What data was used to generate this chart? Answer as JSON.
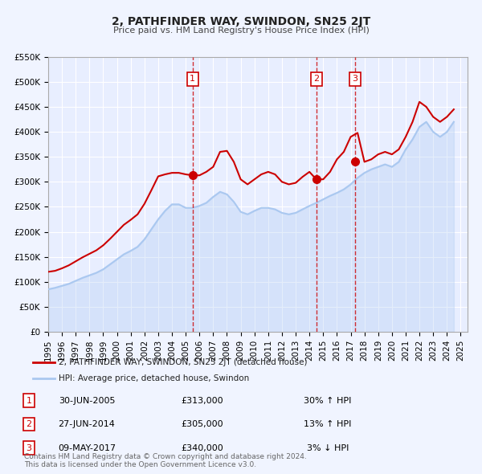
{
  "title": "2, PATHFINDER WAY, SWINDON, SN25 2JT",
  "subtitle": "Price paid vs. HM Land Registry's House Price Index (HPI)",
  "legend_label_red": "2, PATHFINDER WAY, SWINDON, SN25 2JT (detached house)",
  "legend_label_blue": "HPI: Average price, detached house, Swindon",
  "ylabel": "",
  "xlabel": "",
  "ylim": [
    0,
    550000
  ],
  "yticks": [
    0,
    50000,
    100000,
    150000,
    200000,
    250000,
    300000,
    350000,
    400000,
    450000,
    500000,
    550000
  ],
  "ytick_labels": [
    "£0",
    "£50K",
    "£100K",
    "£150K",
    "£200K",
    "£250K",
    "£300K",
    "£350K",
    "£400K",
    "£450K",
    "£500K",
    "£550K"
  ],
  "xlim_start": 1995.0,
  "xlim_end": 2025.5,
  "background_color": "#f0f4ff",
  "plot_bg_color": "#e8eeff",
  "grid_color": "#ffffff",
  "red_color": "#cc0000",
  "blue_color": "#aac8f0",
  "sale_marker_color": "#cc0000",
  "dashed_line_color": "#cc0000",
  "transaction_box_color": "#cc0000",
  "transactions": [
    {
      "num": 1,
      "date": "30-JUN-2005",
      "price": 313000,
      "hpi_pct": "30%",
      "hpi_dir": "↑",
      "year": 2005.5
    },
    {
      "num": 2,
      "date": "27-JUN-2014",
      "price": 305000,
      "hpi_pct": "13%",
      "hpi_dir": "↑",
      "year": 2014.5
    },
    {
      "num": 3,
      "date": "09-MAY-2017",
      "price": 340000,
      "hpi_pct": "3%",
      "hpi_dir": "↓",
      "year": 2017.33
    }
  ],
  "footnote": "Contains HM Land Registry data © Crown copyright and database right 2024.\nThis data is licensed under the Open Government Licence v3.0.",
  "hpi_data": {
    "years": [
      1995,
      1995.5,
      1996,
      1996.5,
      1997,
      1997.5,
      1998,
      1998.5,
      1999,
      1999.5,
      2000,
      2000.5,
      2001,
      2001.5,
      2002,
      2002.5,
      2003,
      2003.5,
      2004,
      2004.5,
      2005,
      2005.5,
      2006,
      2006.5,
      2007,
      2007.5,
      2008,
      2008.5,
      2009,
      2009.5,
      2010,
      2010.5,
      2011,
      2011.5,
      2012,
      2012.5,
      2013,
      2013.5,
      2014,
      2014.5,
      2015,
      2015.5,
      2016,
      2016.5,
      2017,
      2017.5,
      2018,
      2018.5,
      2019,
      2019.5,
      2020,
      2020.5,
      2021,
      2021.5,
      2022,
      2022.5,
      2023,
      2023.5,
      2024,
      2024.5
    ],
    "values": [
      85000,
      88000,
      92000,
      96000,
      102000,
      108000,
      113000,
      118000,
      125000,
      135000,
      145000,
      155000,
      162000,
      170000,
      185000,
      205000,
      225000,
      242000,
      255000,
      255000,
      248000,
      248000,
      252000,
      258000,
      270000,
      280000,
      275000,
      260000,
      240000,
      235000,
      242000,
      248000,
      248000,
      245000,
      238000,
      235000,
      238000,
      245000,
      252000,
      258000,
      265000,
      272000,
      278000,
      285000,
      295000,
      308000,
      318000,
      325000,
      330000,
      335000,
      330000,
      340000,
      365000,
      385000,
      410000,
      420000,
      400000,
      390000,
      400000,
      420000
    ]
  },
  "red_data": {
    "years": [
      1995,
      1995.5,
      1996,
      1996.5,
      1997,
      1997.5,
      1998,
      1998.5,
      1999,
      1999.5,
      2000,
      2000.5,
      2001,
      2001.5,
      2002,
      2002.5,
      2003,
      2003.5,
      2004,
      2004.5,
      2005,
      2005.5,
      2006,
      2006.5,
      2007,
      2007.5,
      2008,
      2008.5,
      2009,
      2009.5,
      2010,
      2010.5,
      2011,
      2011.5,
      2012,
      2012.5,
      2013,
      2013.5,
      2014,
      2014.5,
      2015,
      2015.5,
      2016,
      2016.5,
      2017,
      2017.5,
      2018,
      2018.5,
      2019,
      2019.5,
      2020,
      2020.5,
      2021,
      2021.5,
      2022,
      2022.5,
      2023,
      2023.5,
      2024,
      2024.5
    ],
    "values": [
      120000,
      122000,
      127000,
      133000,
      141000,
      149000,
      156000,
      163000,
      173000,
      186000,
      200000,
      214000,
      224000,
      235000,
      256000,
      283000,
      311000,
      315000,
      318000,
      318000,
      315000,
      313000,
      313000,
      320000,
      330000,
      360000,
      362000,
      340000,
      305000,
      295000,
      305000,
      315000,
      320000,
      315000,
      300000,
      295000,
      298000,
      310000,
      320000,
      305000,
      305000,
      320000,
      345000,
      360000,
      390000,
      398000,
      340000,
      345000,
      355000,
      360000,
      355000,
      365000,
      390000,
      420000,
      460000,
      450000,
      430000,
      420000,
      430000,
      445000
    ]
  }
}
